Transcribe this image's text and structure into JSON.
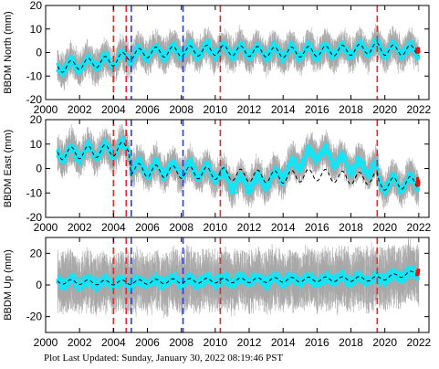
{
  "chart_data": [
    {
      "type": "scatter",
      "ylabel": "BBDM North (mm)",
      "xlim": [
        2000,
        2022.6
      ],
      "ylim": [
        -20,
        20
      ],
      "xticks": [
        2000,
        2002,
        2004,
        2006,
        2008,
        2010,
        2012,
        2014,
        2016,
        2018,
        2020,
        2022
      ],
      "yticks": [
        -20,
        -10,
        0,
        10,
        20
      ],
      "data_start": 2000.7,
      "data_end": 2022.0,
      "model_series": {
        "x": [
          2000.7,
          2002,
          2004,
          2005,
          2006,
          2008,
          2010,
          2012,
          2014,
          2016,
          2018,
          2019.6,
          2020,
          2022
        ],
        "y": [
          -6.5,
          -5,
          -3.5,
          -1,
          0,
          0.5,
          1,
          0.5,
          0,
          0.5,
          1,
          2,
          1,
          1
        ]
      },
      "seasonal_amplitude": 2.2,
      "point_spread": 3,
      "errorbar_spread": 6
    },
    {
      "type": "scatter",
      "ylabel": "BBDM East (mm)",
      "xlim": [
        2000,
        2022.6
      ],
      "ylim": [
        -20,
        20
      ],
      "xticks": [
        2000,
        2002,
        2004,
        2006,
        2008,
        2010,
        2012,
        2014,
        2016,
        2018,
        2020,
        2022
      ],
      "yticks": [
        -20,
        -10,
        0,
        10,
        20
      ],
      "data_start": 2000.7,
      "data_end": 2022.0,
      "model_series": {
        "x": [
          2000.7,
          2002,
          2004,
          2004.9,
          2005.05,
          2006,
          2008,
          2010,
          2012,
          2014,
          2016,
          2018,
          2019.55,
          2019.65,
          2022
        ],
        "y": [
          6,
          6.5,
          7.5,
          9,
          0,
          -1,
          -1.5,
          -2,
          -3,
          -3.5,
          -2.5,
          -4,
          -4,
          -6.5,
          -5.5
        ]
      },
      "observed_series": {
        "x": [
          2000.7,
          2002,
          2004,
          2004.9,
          2005.05,
          2006,
          2008,
          2010,
          2011,
          2012,
          2013,
          2014,
          2015,
          2016,
          2017,
          2018,
          2019.55,
          2019.65,
          2022
        ],
        "y": [
          6,
          6.5,
          7.5,
          9,
          1,
          0,
          0,
          -2,
          -6,
          -6,
          -5,
          -2,
          3,
          7,
          4,
          1,
          0,
          -6.5,
          -5.5
        ]
      },
      "seasonal_amplitude": 2.5,
      "point_spread": 3,
      "errorbar_spread": 6
    },
    {
      "type": "scatter",
      "ylabel": "BBDM Up (mm)",
      "xlim": [
        2000,
        2022.6
      ],
      "ylim": [
        -30,
        30
      ],
      "xticks": [
        2000,
        2002,
        2004,
        2006,
        2008,
        2010,
        2012,
        2014,
        2016,
        2018,
        2020,
        2022
      ],
      "yticks": [
        -20,
        0,
        20
      ],
      "data_start": 2000.7,
      "data_end": 2022.0,
      "model_series": {
        "x": [
          2000.7,
          2004,
          2008,
          2012,
          2016,
          2019.6,
          2022
        ],
        "y": [
          2,
          1.5,
          2.5,
          3,
          3.5,
          4,
          8
        ]
      },
      "seasonal_amplitude": 1.5,
      "point_spread": 5,
      "errorbar_spread": 16
    }
  ],
  "event_lines": [
    {
      "x": 2004.0,
      "color": "#e8292b"
    },
    {
      "x": 2004.75,
      "color": "#e8292b"
    },
    {
      "x": 2005.05,
      "color": "#2b3de8"
    },
    {
      "x": 2008.1,
      "color": "#2b3de8"
    },
    {
      "x": 2010.3,
      "color": "#e8292b"
    },
    {
      "x": 2019.55,
      "color": "#e8292b"
    }
  ],
  "colors": {
    "points": "#15e4f5",
    "errorbars": "#a8a8a8",
    "model": "#000000",
    "latest": "#ee1111"
  },
  "footer": "Plot Last Updated:   Sunday, January 30, 2022 08:19:46 PST"
}
